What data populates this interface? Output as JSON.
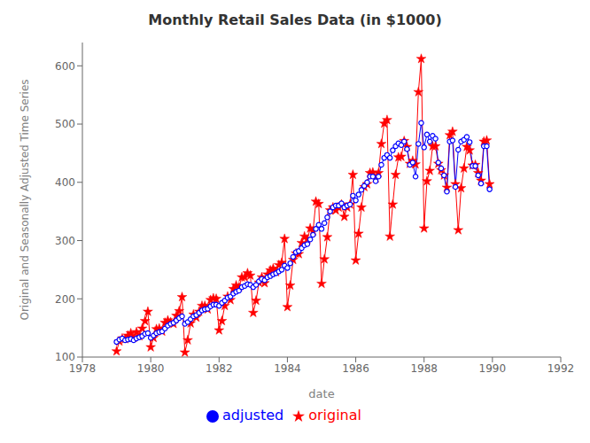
{
  "chart_data": {
    "type": "line",
    "title": "Monthly Retail Sales Data (in $1000)",
    "xlabel": "date",
    "ylabel": "Original and Seasonally Adjusted Time Series",
    "xlim": [
      1978,
      1992
    ],
    "ylim": [
      100,
      640
    ],
    "xticks": [
      1978,
      1980,
      1982,
      1984,
      1986,
      1988,
      1990,
      1992
    ],
    "yticks": [
      100,
      200,
      300,
      400,
      500,
      600
    ],
    "grid": false,
    "legend": "bottom",
    "x": [
      1979,
      1979.0833,
      1979.1667,
      1979.25,
      1979.3333,
      1979.4167,
      1979.5,
      1979.5833,
      1979.6667,
      1979.75,
      1979.8333,
      1979.9167,
      1980,
      1980.0833,
      1980.1667,
      1980.25,
      1980.3333,
      1980.4167,
      1980.5,
      1980.5833,
      1980.6667,
      1980.75,
      1980.8333,
      1980.9167,
      1981,
      1981.0833,
      1981.1667,
      1981.25,
      1981.3333,
      1981.4167,
      1981.5,
      1981.5833,
      1981.6667,
      1981.75,
      1981.8333,
      1981.9167,
      1982,
      1982.0833,
      1982.1667,
      1982.25,
      1982.3333,
      1982.4167,
      1982.5,
      1982.5833,
      1982.6667,
      1982.75,
      1982.8333,
      1982.9167,
      1983,
      1983.0833,
      1983.1667,
      1983.25,
      1983.3333,
      1983.4167,
      1983.5,
      1983.5833,
      1983.6667,
      1983.75,
      1983.8333,
      1983.9167,
      1984,
      1984.0833,
      1984.1667,
      1984.25,
      1984.3333,
      1984.4167,
      1984.5,
      1984.5833,
      1984.6667,
      1984.75,
      1984.8333,
      1984.9167,
      1985,
      1985.0833,
      1985.1667,
      1985.25,
      1985.3333,
      1985.4167,
      1985.5,
      1985.5833,
      1985.6667,
      1985.75,
      1985.8333,
      1985.9167,
      1986,
      1986.0833,
      1986.1667,
      1986.25,
      1986.3333,
      1986.4167,
      1986.5,
      1986.5833,
      1986.6667,
      1986.75,
      1986.8333,
      1986.9167,
      1987,
      1987.0833,
      1987.1667,
      1987.25,
      1987.3333,
      1987.4167,
      1987.5,
      1987.5833,
      1987.6667,
      1987.75,
      1987.8333,
      1987.9167,
      1988,
      1988.0833,
      1988.1667,
      1988.25,
      1988.3333,
      1988.4167,
      1988.5,
      1988.5833,
      1988.6667,
      1988.75,
      1988.8333,
      1988.9167,
      1989,
      1989.0833,
      1989.1667,
      1989.25,
      1989.3333,
      1989.4167,
      1989.5,
      1989.5833,
      1989.6667,
      1989.75,
      1989.8333,
      1989.9167
    ],
    "series": [
      {
        "name": "original",
        "color": "#FF0000",
        "marker": "star",
        "values": [
          110,
          127,
          132,
          131,
          137,
          141,
          133,
          143,
          136,
          149,
          162,
          178,
          117,
          133,
          148,
          149,
          144,
          159,
          163,
          160,
          157,
          171,
          179,
          203,
          108,
          129,
          158,
          173,
          168,
          178,
          188,
          188,
          182,
          198,
          201,
          200,
          146,
          162,
          188,
          204,
          198,
          217,
          223,
          220,
          237,
          237,
          244,
          240,
          176,
          197,
          228,
          237,
          227,
          242,
          249,
          252,
          246,
          258,
          262,
          303,
          186,
          223,
          267,
          278,
          277,
          296,
          307,
          302,
          321,
          316,
          367,
          363,
          226,
          268,
          306,
          352,
          357,
          352,
          357,
          362,
          341,
          357,
          362,
          413,
          266,
          312,
          357,
          392,
          397,
          416,
          417,
          407,
          416,
          466,
          501,
          507,
          307,
          362,
          413,
          443,
          444,
          471,
          461,
          432,
          437,
          431,
          555,
          612,
          321,
          402,
          420,
          462,
          462,
          432,
          421,
          412,
          391,
          481,
          487,
          397,
          318,
          390,
          424,
          461,
          455,
          429,
          430,
          416,
          403,
          470,
          472,
          397
        ]
      },
      {
        "name": "adjusted",
        "color": "#0000FF",
        "marker": "circle",
        "values": [
          126,
          130,
          132,
          129,
          130,
          131,
          129,
          132,
          134,
          136,
          140,
          141,
          133,
          137,
          141,
          143,
          144,
          149,
          154,
          157,
          159,
          163,
          167,
          170,
          157,
          160,
          165,
          170,
          172,
          176,
          180,
          182,
          183,
          187,
          190,
          190,
          188,
          193,
          197,
          202,
          204,
          209,
          212,
          214,
          220,
          222,
          225,
          224,
          220,
          224,
          230,
          234,
          232,
          237,
          239,
          242,
          244,
          247,
          250,
          257,
          253,
          261,
          272,
          280,
          282,
          287,
          292,
          294,
          302,
          310,
          320,
          327,
          320,
          330,
          340,
          350,
          357,
          360,
          360,
          364,
          357,
          360,
          362,
          377,
          369,
          379,
          387,
          394,
          400,
          410,
          410,
          402,
          410,
          430,
          442,
          447,
          442,
          455,
          462,
          467,
          464,
          470,
          457,
          430,
          434,
          410,
          466,
          502,
          460,
          482,
          470,
          480,
          475,
          434,
          424,
          412,
          384,
          470,
          472,
          392,
          456,
          470,
          473,
          478,
          469,
          428,
          428,
          412,
          398,
          462,
          462,
          388
        ]
      }
    ]
  }
}
